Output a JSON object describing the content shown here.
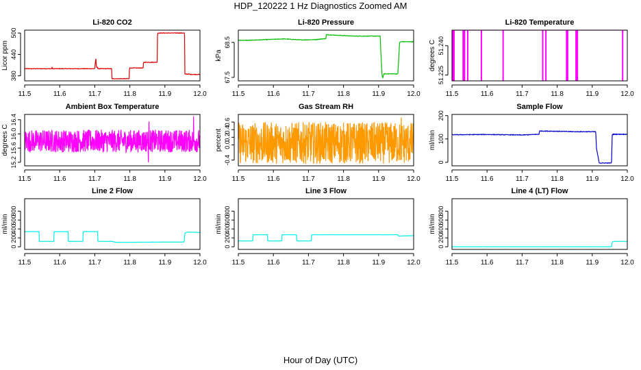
{
  "figure": {
    "title": "HDP_120222  1 Hz Diagnostics Zoomed AM",
    "xlabel": "Hour of Day (UTC)"
  },
  "chart_data": [
    {
      "type": "line",
      "title": "Li-820 CO2",
      "ylabel": "Licor ppm",
      "color": "#dd0000",
      "xlim": [
        11.5,
        12.0
      ],
      "xticks": [
        11.5,
        11.6,
        11.7,
        11.8,
        11.9,
        12.0
      ],
      "xtick_labels": [
        "11.5",
        "11.6",
        "11.7",
        "11.8",
        "11.9",
        "12.0"
      ],
      "ylim": [
        366,
        508
      ],
      "yticks": [
        380,
        440,
        500
      ],
      "ytick_labels": [
        "380",
        "440",
        "500"
      ],
      "noise": 1.5,
      "x": [
        11.5,
        11.518,
        11.519,
        11.52,
        11.577,
        11.578,
        11.579,
        11.7,
        11.701,
        11.703,
        11.704,
        11.705,
        11.708,
        11.709,
        11.748,
        11.749,
        11.798,
        11.799,
        11.838,
        11.839,
        11.878,
        11.879,
        11.956,
        11.957,
        11.97,
        11.971,
        12.0
      ],
      "y": [
        400,
        400,
        399,
        400,
        400,
        404,
        400,
        400,
        412,
        430,
        412,
        404,
        404,
        400,
        400,
        372,
        372,
        402,
        402,
        418,
        418,
        500,
        500,
        385,
        385,
        384,
        384
      ]
    },
    {
      "type": "line",
      "title": "Li-820 Pressure",
      "ylabel": "kPa",
      "color": "#00bb00",
      "xlim": [
        11.5,
        12.0
      ],
      "xticks": [
        11.5,
        11.6,
        11.7,
        11.8,
        11.9,
        12.0
      ],
      "xtick_labels": [
        "11.5",
        "11.6",
        "11.7",
        "11.8",
        "11.9",
        "12.0"
      ],
      "ylim": [
        67.4,
        68.85
      ],
      "yticks": [
        67.5,
        68.5
      ],
      "ytick_labels": [
        "67.5",
        "68.5"
      ],
      "noise": 0.015,
      "x": [
        11.5,
        11.53,
        11.58,
        11.63,
        11.68,
        11.72,
        11.75,
        11.751,
        11.79,
        11.83,
        11.87,
        11.905,
        11.906,
        11.91,
        11.912,
        11.915,
        11.92,
        11.93,
        11.955,
        11.96,
        11.965,
        12.0
      ],
      "y": [
        68.56,
        68.56,
        68.58,
        68.6,
        68.57,
        68.58,
        68.61,
        68.72,
        68.7,
        68.68,
        68.68,
        68.68,
        68.3,
        67.55,
        67.48,
        67.6,
        67.6,
        67.6,
        67.6,
        68.5,
        68.52,
        68.52
      ]
    },
    {
      "type": "line",
      "title": "Li-820 Temperature",
      "ylabel": "degrees C",
      "color": "#ff00ff",
      "xlim": [
        11.5,
        12.0
      ],
      "xticks": [
        11.5,
        11.6,
        11.7,
        11.8,
        11.9,
        12.0
      ],
      "xtick_labels": [
        "11.5",
        "11.6",
        "11.7",
        "11.8",
        "11.9",
        "12.0"
      ],
      "ylim": [
        51.222,
        51.248
      ],
      "yticks": [
        51.225,
        51.24
      ],
      "ytick_labels": [
        "51.225",
        "51.240"
      ],
      "noise": 0,
      "base_value": 51.248,
      "dip_value": 51.222,
      "dips": [
        11.502,
        11.505,
        11.531,
        11.535,
        11.544,
        11.583,
        11.645,
        11.758,
        11.767,
        11.826,
        11.829,
        11.853,
        11.857,
        11.986
      ]
    },
    {
      "type": "line",
      "title": "Ambient Box Temperature",
      "ylabel": "degrees C",
      "color": "#ff00ff",
      "xlim": [
        11.5,
        12.0
      ],
      "xticks": [
        11.5,
        11.6,
        11.7,
        11.8,
        11.9,
        12.0
      ],
      "xtick_labels": [
        "11.5",
        "11.6",
        "11.7",
        "11.8",
        "11.9",
        "12.0"
      ],
      "ylim": [
        15.1,
        16.55
      ],
      "yticks": [
        15.2,
        15.6,
        16.0,
        16.4
      ],
      "ytick_labels": [
        "15.2",
        "15.6",
        "16.0",
        "16.4"
      ],
      "noise": 0.32,
      "spikes": [
        [
          11.982,
          16.5
        ],
        [
          11.855,
          16.35
        ],
        [
          11.853,
          15.2
        ]
      ],
      "x": [
        11.5,
        12.0
      ],
      "y": [
        15.8,
        15.8
      ]
    },
    {
      "type": "line",
      "title": "Gas Stream RH",
      "ylabel": "percent",
      "color": "#ff9900",
      "xlim": [
        11.5,
        12.0
      ],
      "xticks": [
        11.5,
        11.6,
        11.7,
        11.8,
        11.9,
        12.0
      ],
      "xtick_labels": [
        "11.5",
        "11.6",
        "11.7",
        "11.8",
        "11.9",
        "12.0"
      ],
      "ylim": [
        -0.55,
        0.8
      ],
      "yticks": [
        -0.4,
        0.0,
        0.2,
        0.4,
        0.6
      ],
      "ytick_labels": [
        "-0.4",
        "0.0",
        "0.2",
        "0.4",
        "0.6"
      ],
      "noise": 0.55,
      "spikes": [
        [
          11.965,
          0.72
        ]
      ],
      "x": [
        11.5,
        12.0
      ],
      "y": [
        0.05,
        0.05
      ]
    },
    {
      "type": "line",
      "title": "Sample Flow",
      "ylabel": "ml/min",
      "color": "#0000cc",
      "xlim": [
        11.5,
        12.0
      ],
      "xticks": [
        11.5,
        11.6,
        11.7,
        11.8,
        11.9,
        12.0
      ],
      "xtick_labels": [
        "11.5",
        "11.6",
        "11.7",
        "11.8",
        "11.9",
        "12.0"
      ],
      "ylim": [
        -15,
        205
      ],
      "yticks": [
        0,
        100,
        200
      ],
      "ytick_labels": [
        "0",
        "100",
        "200"
      ],
      "noise": 2.5,
      "x": [
        11.5,
        11.6,
        11.7,
        11.748,
        11.75,
        11.8,
        11.85,
        11.91,
        11.912,
        11.92,
        11.955,
        11.957,
        11.96,
        12.0
      ],
      "y": [
        118,
        119,
        117,
        120,
        134,
        133,
        131,
        131,
        60,
        -3,
        -3,
        118,
        120,
        120
      ]
    },
    {
      "type": "line",
      "title": "Line 2 Flow",
      "ylabel": "ml/min",
      "color": "#00eeee",
      "xlim": [
        11.5,
        12.0
      ],
      "xticks": [
        11.5,
        11.6,
        11.7,
        11.8,
        11.9,
        12.0
      ],
      "xtick_labels": [
        "11.5",
        "11.6",
        "11.7",
        "11.8",
        "11.9",
        "12.0"
      ],
      "ylim": [
        -60,
        1080
      ],
      "yticks": [
        0,
        200,
        400,
        600,
        800
      ],
      "ytick_labels": [
        "0",
        "200",
        "400",
        "600",
        "800"
      ],
      "noise": 5,
      "x": [
        11.5,
        11.541,
        11.542,
        11.583,
        11.584,
        11.624,
        11.625,
        11.666,
        11.667,
        11.708,
        11.709,
        11.75,
        11.76,
        11.8,
        11.9,
        11.955,
        11.957,
        11.965,
        12.0
      ],
      "y": [
        340,
        340,
        120,
        120,
        340,
        340,
        120,
        120,
        340,
        340,
        120,
        120,
        100,
        100,
        105,
        105,
        310,
        330,
        320
      ]
    },
    {
      "type": "line",
      "title": "Line 3 Flow",
      "ylabel": "ml/min",
      "color": "#00eeee",
      "xlim": [
        11.5,
        12.0
      ],
      "xticks": [
        11.5,
        11.6,
        11.7,
        11.8,
        11.9,
        12.0
      ],
      "xtick_labels": [
        "11.5",
        "11.6",
        "11.7",
        "11.8",
        "11.9",
        "12.0"
      ],
      "ylim": [
        -60,
        1080
      ],
      "yticks": [
        0,
        200,
        400,
        600,
        800
      ],
      "ytick_labels": [
        "0",
        "200",
        "400",
        "600",
        "800"
      ],
      "noise": 4,
      "x": [
        11.5,
        11.541,
        11.542,
        11.583,
        11.584,
        11.624,
        11.625,
        11.666,
        11.667,
        11.708,
        11.709,
        11.955,
        11.957,
        12.0
      ],
      "y": [
        130,
        130,
        270,
        270,
        130,
        130,
        270,
        270,
        130,
        130,
        270,
        270,
        240,
        250
      ]
    },
    {
      "type": "line",
      "title": "Line 4 (LT) Flow",
      "ylabel": "ml/min",
      "color": "#00eeee",
      "xlim": [
        11.5,
        12.0
      ],
      "xticks": [
        11.5,
        11.6,
        11.7,
        11.8,
        11.9,
        12.0
      ],
      "xtick_labels": [
        "11.5",
        "11.6",
        "11.7",
        "11.8",
        "11.9",
        "12.0"
      ],
      "ylim": [
        -60,
        1080
      ],
      "yticks": [
        0,
        200,
        400,
        600,
        800
      ],
      "ytick_labels": [
        "0",
        "200",
        "400",
        "600",
        "800"
      ],
      "noise": 2,
      "x": [
        11.5,
        11.955,
        11.957,
        11.96,
        12.0
      ],
      "y": [
        0,
        0,
        100,
        120,
        120
      ]
    }
  ]
}
